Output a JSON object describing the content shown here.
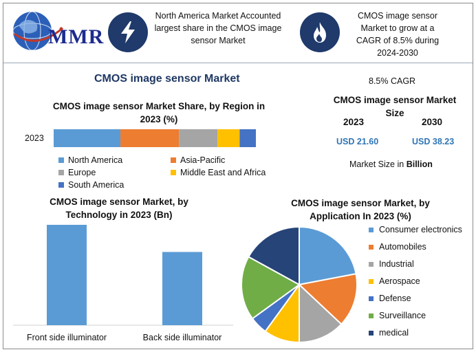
{
  "header": {
    "logo_text": "MMR",
    "fact_1": "North America Market Accounted largest share in the CMOS image sensor Market",
    "fact_1_icon": "lightning-bolt-icon",
    "fact_2": "CMOS image sensor Market to grow at a CAGR of 8.5% during 2024-2030",
    "fact_2_icon": "flame-icon"
  },
  "main_title": "CMOS image sensor Market",
  "market_size": {
    "cagr": "8.5% CAGR",
    "title": "CMOS image sensor Market Size",
    "year_1": "2023",
    "year_2": "2030",
    "value_1": "USD 21.60",
    "value_2": "USD 38.23",
    "unit_prefix": "Market Size in",
    "unit_bold": "Billion"
  },
  "colors": {
    "blue": "#5b9bd5",
    "orange": "#ed7d31",
    "gray": "#a5a5a5",
    "yellow": "#ffc000",
    "dark_blue": "#4472c4",
    "green": "#70ad47",
    "navy": "#264478",
    "header_icon": "#1f3a6b",
    "title": "#1f3864"
  },
  "chart_data": [
    {
      "type": "bar",
      "orientation": "horizontal-stacked",
      "title": "CMOS image sensor Market Share, by Region in 2023 (%)",
      "categories": [
        "2023"
      ],
      "series": [
        {
          "name": "North America",
          "values": [
            33
          ],
          "color": "#5b9bd5"
        },
        {
          "name": "Asia-Pacific",
          "values": [
            29
          ],
          "color": "#ed7d31"
        },
        {
          "name": "Europe",
          "values": [
            19
          ],
          "color": "#a5a5a5"
        },
        {
          "name": "Middle East and Africa",
          "values": [
            11
          ],
          "color": "#ffc000"
        },
        {
          "name": "South America",
          "values": [
            8
          ],
          "color": "#4472c4"
        }
      ],
      "legend_position": "bottom"
    },
    {
      "type": "bar",
      "title": "CMOS image sensor Market, by Technology in 2023 (Bn)",
      "categories": [
        "Front side illuminator",
        "Back side illuminator"
      ],
      "values": [
        12.2,
        8.9
      ],
      "color": "#5b9bd5",
      "ylim": [
        0,
        12.2
      ]
    },
    {
      "type": "pie",
      "title": "CMOS image sensor Market, by Application In 2023 (%)",
      "labels": [
        "Consumer electronics",
        "Automobiles",
        "Industrial",
        "Aerospace",
        "Defense",
        "Surveillance",
        "medical"
      ],
      "values": [
        22,
        15,
        13,
        10,
        5,
        18,
        17
      ],
      "colors": [
        "#5b9bd5",
        "#ed7d31",
        "#a5a5a5",
        "#ffc000",
        "#4472c4",
        "#70ad47",
        "#264478"
      ],
      "legend_position": "right"
    }
  ]
}
